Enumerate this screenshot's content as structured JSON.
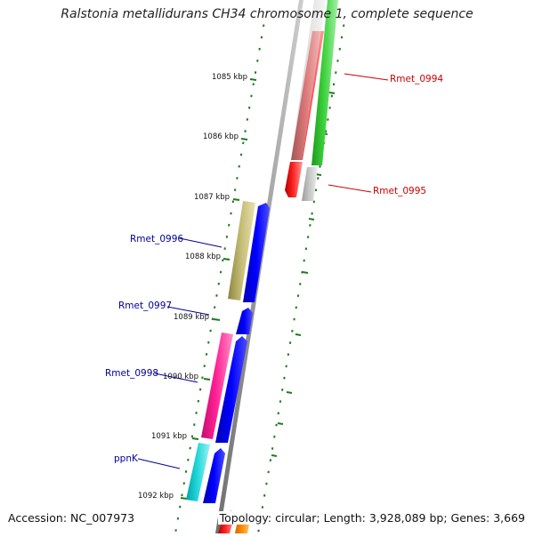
{
  "title": "Ralstonia metallidurans CH34 chromosome 1, complete sequence",
  "accession": "Accession: NC_007973",
  "topology": "Topology: circular; Length: 3,928,089 bp; Genes: 3,669",
  "scale_labels": [
    "1085 kbp",
    "1086 kbp",
    "1087 kbp",
    "1088 kbp",
    "1089 kbp",
    "1090 kbp",
    "1091 kbp",
    "1092 kbp"
  ],
  "genes": [
    {
      "label": "Rmet_0994",
      "color": "#cc0000",
      "side": "right"
    },
    {
      "label": "Rmet_0995",
      "color": "#cc0000",
      "side": "right"
    },
    {
      "label": "Rmet_0996",
      "color": "#000099",
      "side": "left"
    },
    {
      "label": "Rmet_0997",
      "color": "#000099",
      "side": "left"
    },
    {
      "label": "Rmet_0998",
      "color": "#000099",
      "side": "left"
    },
    {
      "label": "ppnK",
      "color": "#000099",
      "side": "left"
    }
  ],
  "colors": {
    "backbone": "#8c8c8c",
    "scale_dots": "#1f7a1f",
    "red": "#ff0000",
    "green": "#33cc33",
    "gray": "#c0c0c0",
    "khaki": "#bdb76b",
    "blue": "#0000ff",
    "pink": "#ff1493",
    "cyan": "#00ced1",
    "orange": "#ff8c00"
  }
}
